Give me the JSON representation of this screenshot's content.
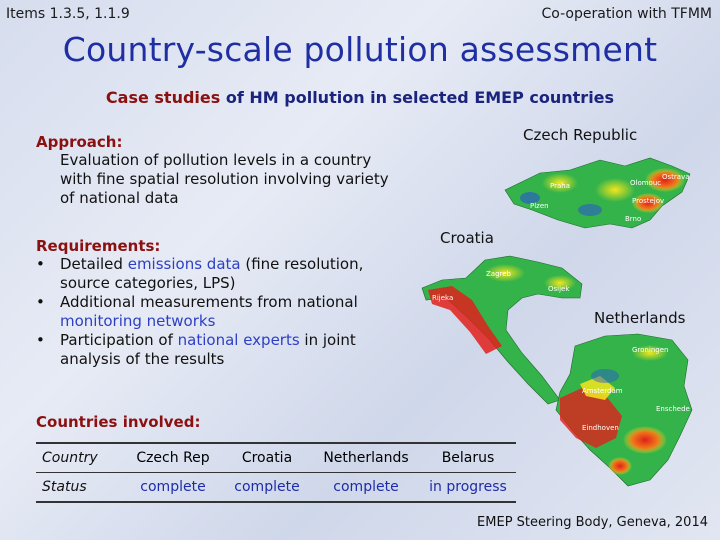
{
  "header": {
    "left": "Items 1.3.5, 1.1.9",
    "right": "Co-operation with TFMM"
  },
  "title": "Country-scale pollution assessment",
  "subtitle": {
    "part1": "Case studies",
    "part2": "of HM pollution in selected EMEP countries"
  },
  "approach": {
    "heading": "Approach:",
    "text": "Evaluation of pollution levels in a country with fine spatial resolution involving variety of national data"
  },
  "requirements": {
    "heading": "Requirements:",
    "item1": {
      "pre": "Detailed ",
      "hl": "emissions data",
      "post": " (fine resolution, source categories, LPS)"
    },
    "item2": {
      "pre": "Additional measurements from national ",
      "hl": "monitoring networks",
      "post": ""
    },
    "item3": {
      "pre": "Participation of ",
      "hl": "national experts",
      "post": " in joint analysis of the results"
    }
  },
  "countries_heading": "Countries involved:",
  "table": {
    "rows": [
      [
        "Country",
        "Czech Rep",
        "Croatia",
        "Netherlands",
        "Belarus"
      ],
      [
        "Status",
        "complete",
        "complete",
        "complete",
        "in progress"
      ]
    ]
  },
  "maps": {
    "czech": {
      "label": "Czech Republic",
      "cities": [
        "Praha",
        "Olomouc",
        "Ostrava",
        "Prostejov",
        "Plzen",
        "Brno"
      ]
    },
    "croatia": {
      "label": "Croatia",
      "cities": [
        "Zagreb",
        "Osijek",
        "Rijeka"
      ]
    },
    "netherlands": {
      "label": "Netherlands",
      "cities": [
        "Groningen",
        "Enschede",
        "Eindhoven",
        "Amsterdam"
      ]
    }
  },
  "footer": "EMEP Steering Body, Geneva, 2014",
  "colors": {
    "title": "#1f2fa3",
    "section_heading": "#8b1010",
    "highlight": "#2d3fc4",
    "map_green": "#34b34a",
    "map_red": "#e0201b",
    "map_yellow": "#f4e61c",
    "map_blue": "#2952d6"
  }
}
